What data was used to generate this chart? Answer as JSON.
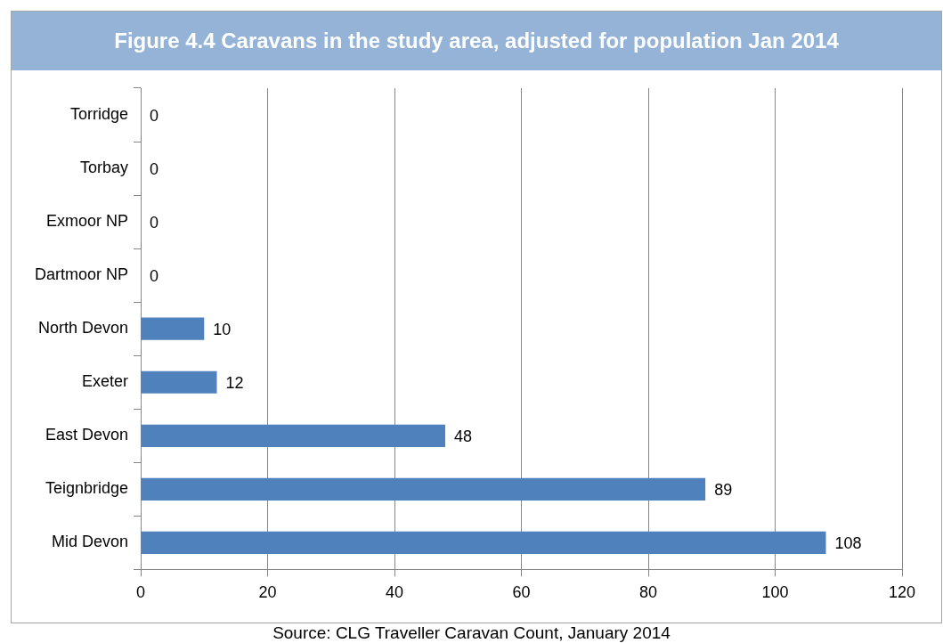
{
  "chart_data": {
    "type": "bar",
    "orientation": "horizontal",
    "title": "Figure 4.4 Caravans in the study area, adjusted for population Jan 2014",
    "categories": [
      "Torridge",
      "Torbay",
      "Exmoor NP",
      "Dartmoor NP",
      "North Devon",
      "Exeter",
      "East Devon",
      "Teignbridge",
      "Mid Devon"
    ],
    "values": [
      0,
      0,
      0,
      0,
      10,
      12,
      48,
      89,
      108
    ],
    "color": "#4f81bd",
    "xlim": [
      0,
      120
    ],
    "xticks": [
      0,
      20,
      40,
      60,
      80,
      100,
      120
    ],
    "grid": "x",
    "data_labels": true,
    "legend": false,
    "annotations": [
      "Source: CLG Traveller Caravan Count, January 2014"
    ]
  }
}
